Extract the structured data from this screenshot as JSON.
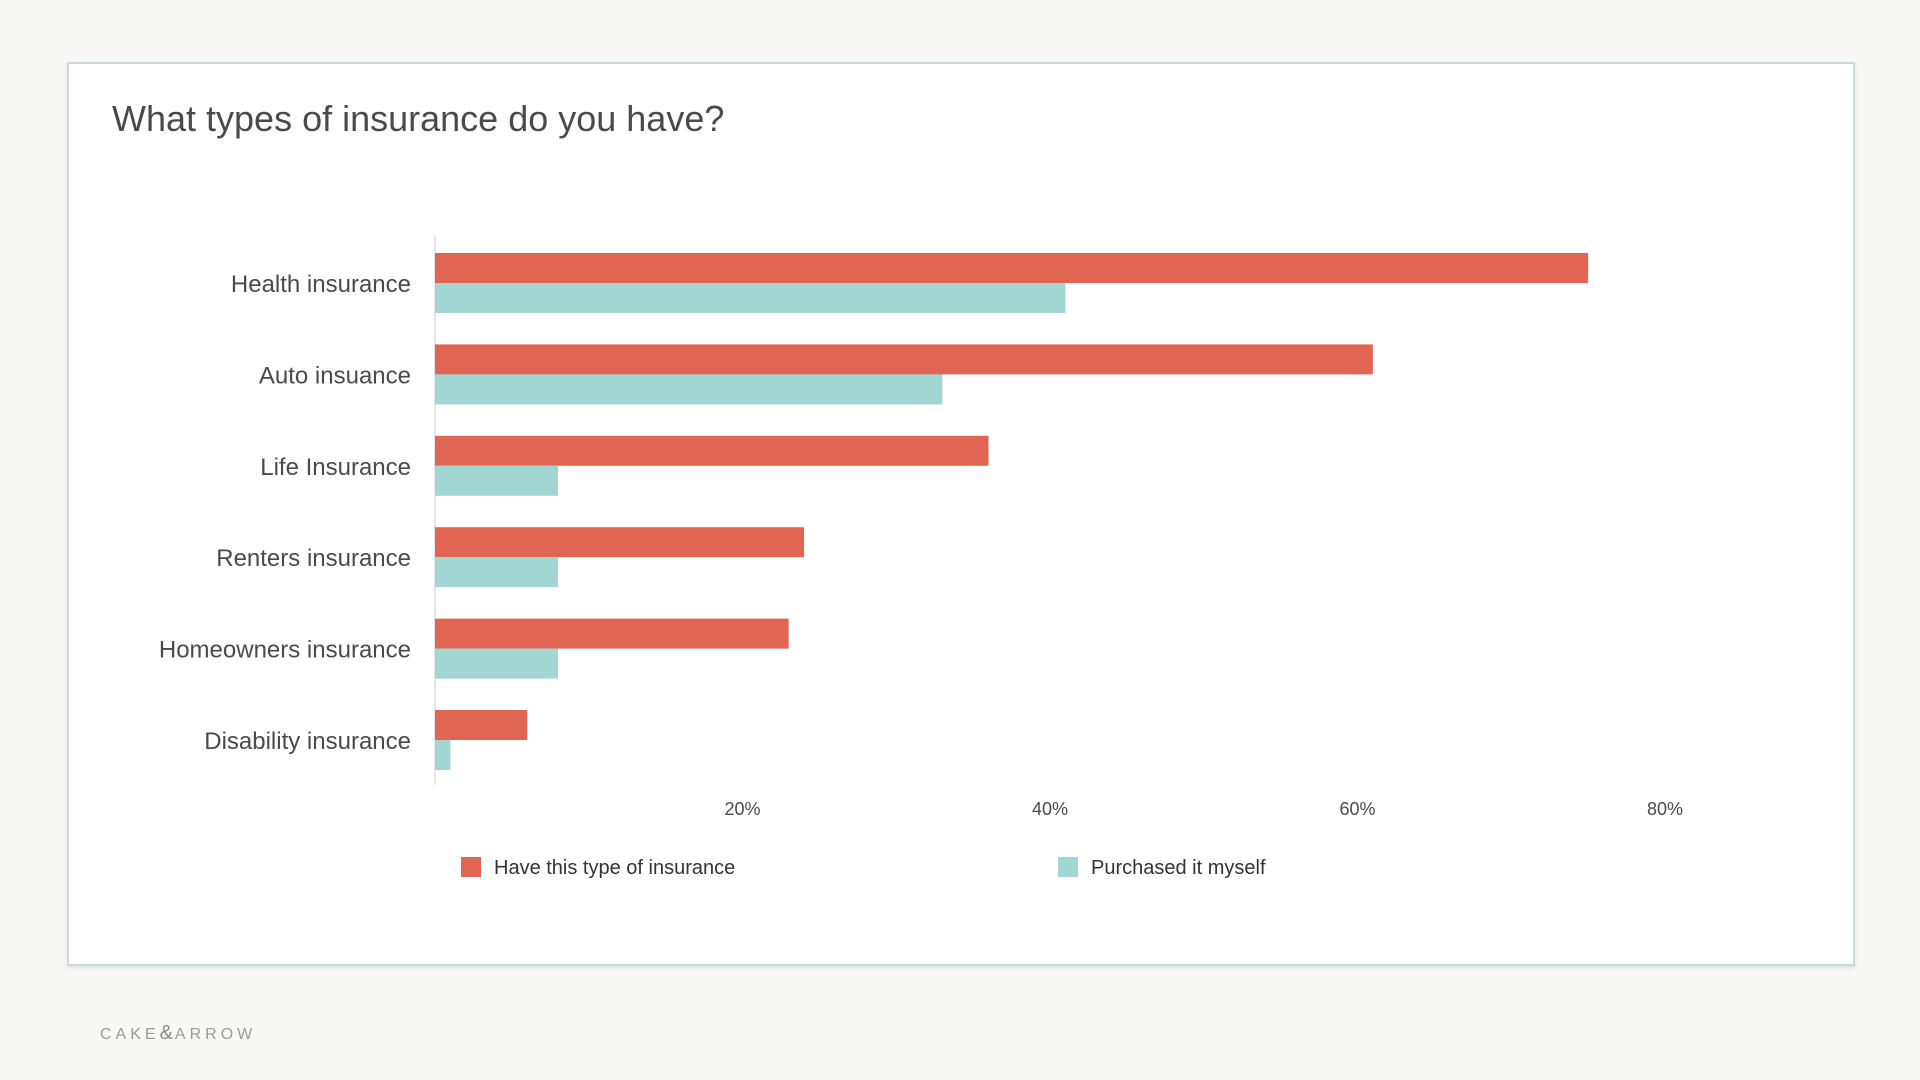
{
  "colors": {
    "have": "#e06552",
    "purchased": "#a1d6d2",
    "axis": "#cccccc",
    "text": "#4a4a4a"
  },
  "chart_data": {
    "type": "bar",
    "orientation": "horizontal",
    "title": "What types of insurance do you have?",
    "categories": [
      "Health insurance",
      "Auto insuance",
      "Life Insurance",
      "Renters insurance",
      "Homeowners insurance",
      "Disability insurance"
    ],
    "series": [
      {
        "name": "Have this type of insurance",
        "color": "#e06552",
        "values": [
          75,
          61,
          36,
          24,
          23,
          6
        ]
      },
      {
        "name": "Purchased it myself",
        "color": "#a1d6d2",
        "values": [
          41,
          33,
          8,
          8,
          8,
          1
        ]
      }
    ],
    "xlim": [
      0,
      80
    ],
    "ticks": [
      20,
      40,
      60,
      80
    ],
    "tick_labels": [
      "20%",
      "40%",
      "60%",
      "80%"
    ],
    "grid": false,
    "legend": "bottom"
  },
  "brand": {
    "left": "CAKE",
    "amp": "&",
    "right": "ARROW"
  }
}
